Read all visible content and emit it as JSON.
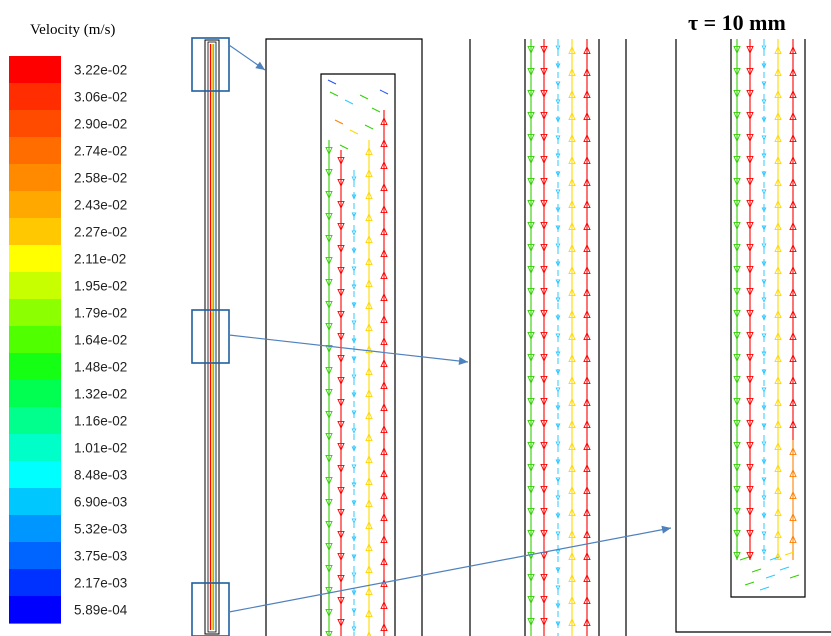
{
  "chart_data": {
    "type": "vector-field",
    "legend_title": "Velocity (m/s)",
    "annotation": "τ = 10 mm",
    "colorbar_ticks": [
      "3.22e-02",
      "3.06e-02",
      "2.90e-02",
      "2.74e-02",
      "2.58e-02",
      "2.43e-02",
      "2.27e-02",
      "2.11e-02",
      "1.95e-02",
      "1.79e-02",
      "1.64e-02",
      "1.48e-02",
      "1.32e-02",
      "1.16e-02",
      "1.01e-02",
      "8.48e-03",
      "6.90e-03",
      "5.32e-03",
      "3.75e-03",
      "2.17e-03",
      "5.89e-04"
    ],
    "colorbar_colors": [
      "#ff0000",
      "#ff2d00",
      "#ff4b00",
      "#ff6c00",
      "#ff8a00",
      "#ffa800",
      "#ffc800",
      "#ffff00",
      "#c8ff00",
      "#8cff00",
      "#50ff00",
      "#14ff14",
      "#00ff50",
      "#00ff8c",
      "#00ffc8",
      "#00ffff",
      "#00c8ff",
      "#0096ff",
      "#0064ff",
      "#0032ff",
      "#0000ff"
    ],
    "zoom_panels": [
      "top",
      "middle",
      "bottom"
    ]
  }
}
